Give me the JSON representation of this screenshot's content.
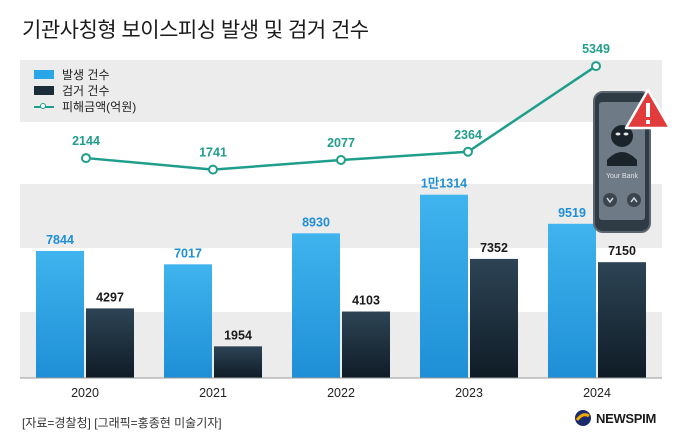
{
  "title": "기관사칭형 보이스피싱 발생 및 검거 건수",
  "legend": {
    "occurrence": "발생 건수",
    "arrest": "검거 건수",
    "damage": "피해금액(억원)"
  },
  "source": "[자료=경찰청] [그래픽=홍종현 미술기자]",
  "brand": "NEWSPIM",
  "phone_text": "Your Bank",
  "colors": {
    "occurrence_top": "#3fb4ee",
    "occurrence_bottom": "#1e8fd6",
    "arrest_top": "#2d4455",
    "arrest_bottom": "#0f1c26",
    "line": "#1f9e8c",
    "band": "#ececec"
  },
  "chart_data": {
    "type": "bar",
    "categories": [
      "2020",
      "2021",
      "2022",
      "2023",
      "2024"
    ],
    "series": [
      {
        "name": "발생 건수",
        "values": [
          7844,
          7017,
          8930,
          11314,
          9519
        ],
        "labels": [
          "7844",
          "7017",
          "8930",
          "1만1314",
          "9519"
        ]
      },
      {
        "name": "검거 건수",
        "values": [
          4297,
          1954,
          4103,
          7352,
          7150
        ],
        "labels": [
          "4297",
          "1954",
          "4103",
          "7352",
          "7150"
        ]
      }
    ],
    "line_series": {
      "name": "피해금액(억원)",
      "type": "line",
      "values": [
        2144,
        1741,
        2077,
        2364,
        5349
      ],
      "labels": [
        "2144",
        "1741",
        "2077",
        "2364",
        "5349"
      ]
    }
  }
}
